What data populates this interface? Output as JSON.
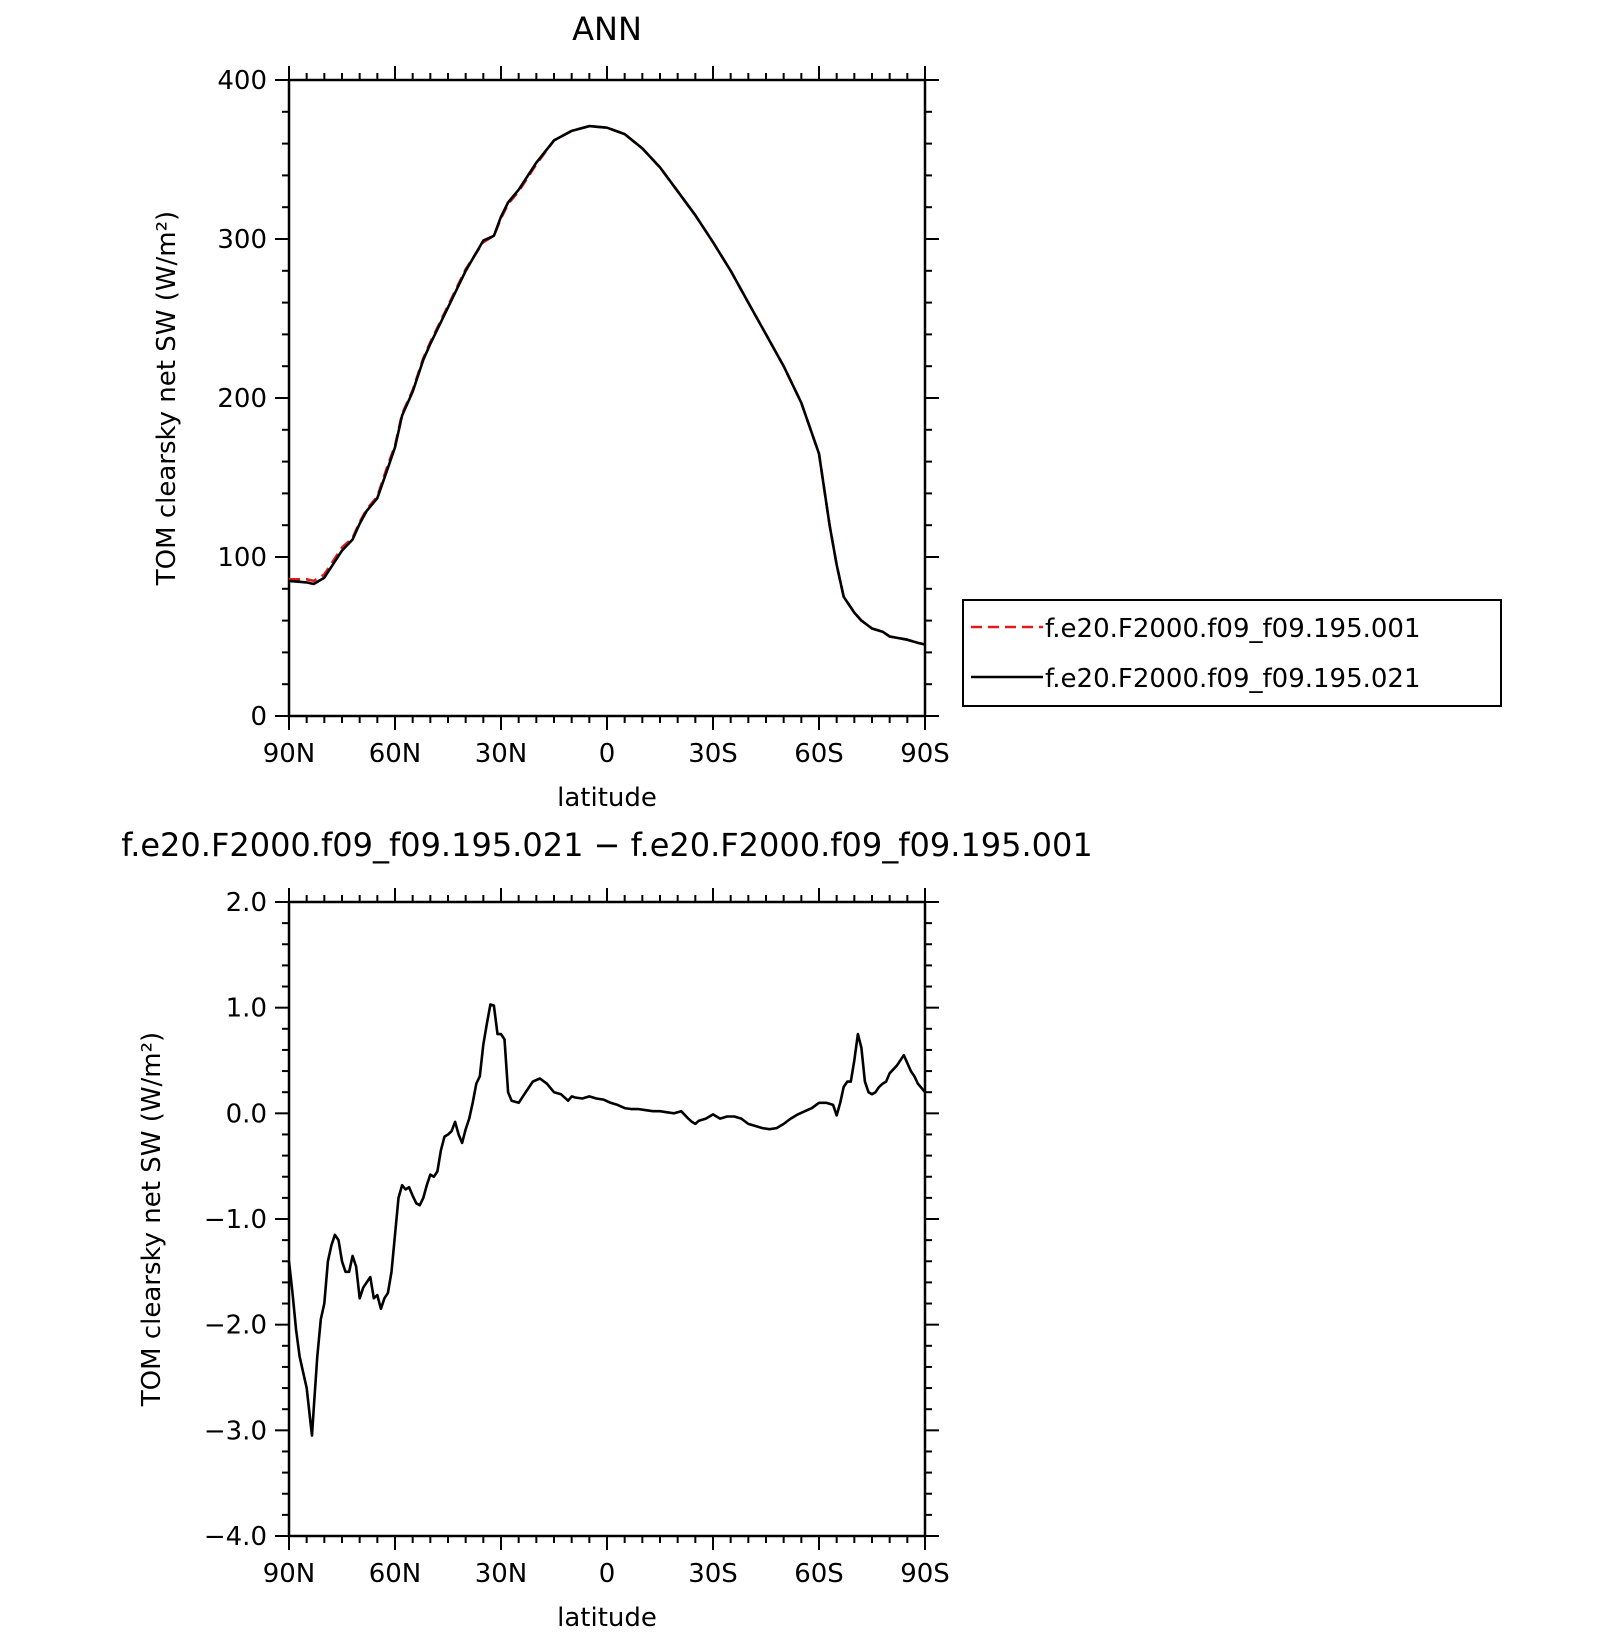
{
  "chart_data": [
    {
      "type": "line",
      "title": "ANN",
      "xlabel": "latitude",
      "ylabel": "TOM clearsky net SW (W/m²)",
      "xlim": [
        90,
        -90
      ],
      "ylim": [
        0,
        400
      ],
      "x_ticks": [
        {
          "value": 90,
          "label": "90N"
        },
        {
          "value": 60,
          "label": "60N"
        },
        {
          "value": 30,
          "label": "30N"
        },
        {
          "value": 0,
          "label": "0"
        },
        {
          "value": -30,
          "label": "30S"
        },
        {
          "value": -60,
          "label": "60S"
        },
        {
          "value": -90,
          "label": "90S"
        }
      ],
      "y_ticks": [
        {
          "value": 0,
          "label": "0"
        },
        {
          "value": 100,
          "label": "100"
        },
        {
          "value": 200,
          "label": "200"
        },
        {
          "value": 300,
          "label": "300"
        },
        {
          "value": 400,
          "label": "400"
        }
      ],
      "legend": "right",
      "series": [
        {
          "name": "f.e20.F2000.f09_f09.195.001",
          "color": "#e31a1c",
          "dash": "dashed",
          "x": [
            90,
            85,
            83,
            80,
            75,
            72,
            70,
            68,
            65,
            62,
            60,
            58,
            55,
            52,
            50,
            45,
            40,
            35,
            32,
            30,
            28,
            25,
            20,
            15,
            10,
            5,
            0,
            -5,
            -10,
            -15,
            -20,
            -25,
            -30,
            -35,
            -40,
            -45,
            -50,
            -55,
            -60,
            -63,
            -65,
            -67,
            -70,
            -72,
            -75,
            -78,
            -80,
            -85,
            -88,
            -90
          ],
          "y": [
            86,
            86,
            85,
            89,
            106,
            112,
            122,
            130,
            138,
            158,
            170,
            190,
            205,
            225,
            235,
            258,
            281,
            298,
            302,
            313,
            322,
            330,
            347,
            362,
            368,
            371,
            370,
            366,
            357,
            345,
            330,
            315,
            298,
            280,
            260,
            240,
            220,
            197,
            165,
            120,
            95,
            75,
            65,
            60,
            55,
            53,
            50,
            48,
            46,
            45
          ]
        },
        {
          "name": "f.e20.F2000.f09_f09.195.021",
          "color": "#000000",
          "dash": "solid",
          "x": [
            90,
            85,
            83,
            80,
            75,
            72,
            70,
            68,
            65,
            62,
            60,
            58,
            55,
            52,
            50,
            45,
            40,
            35,
            32,
            30,
            28,
            25,
            20,
            15,
            10,
            5,
            0,
            -5,
            -10,
            -15,
            -20,
            -25,
            -30,
            -35,
            -40,
            -45,
            -50,
            -55,
            -60,
            -63,
            -65,
            -67,
            -70,
            -72,
            -75,
            -78,
            -80,
            -85,
            -88,
            -90
          ],
          "y": [
            85,
            84,
            83,
            87,
            104,
            111,
            121,
            129,
            137,
            156,
            169,
            189,
            204,
            224,
            234,
            257,
            280,
            299,
            302,
            314,
            323,
            331,
            348,
            362,
            368,
            371,
            370,
            366,
            357,
            345,
            330,
            315,
            298,
            280,
            260,
            240,
            220,
            197,
            165,
            120,
            95,
            75,
            65,
            60,
            55,
            53,
            50,
            48,
            46,
            45
          ]
        }
      ]
    },
    {
      "type": "line",
      "title": "f.e20.F2000.f09_f09.195.021 − f.e20.F2000.f09_f09.195.001",
      "xlabel": "latitude",
      "ylabel": "TOM clearsky net SW (W/m²)",
      "xlim": [
        90,
        -90
      ],
      "ylim": [
        -4.0,
        2.0
      ],
      "x_ticks": [
        {
          "value": 90,
          "label": "90N"
        },
        {
          "value": 60,
          "label": "60N"
        },
        {
          "value": 30,
          "label": "30N"
        },
        {
          "value": 0,
          "label": "0"
        },
        {
          "value": -30,
          "label": "30S"
        },
        {
          "value": -60,
          "label": "60S"
        },
        {
          "value": -90,
          "label": "90S"
        }
      ],
      "y_ticks": [
        {
          "value": -4.0,
          "label": "−4.0"
        },
        {
          "value": -3.0,
          "label": "−3.0"
        },
        {
          "value": -2.0,
          "label": "−2.0"
        },
        {
          "value": -1.0,
          "label": "−1.0"
        },
        {
          "value": 0.0,
          "label": "0.0"
        },
        {
          "value": 1.0,
          "label": "1.0"
        },
        {
          "value": 2.0,
          "label": "2.0"
        }
      ],
      "series": [
        {
          "color": "#000000",
          "x": [
            90,
            89,
            88,
            87,
            86,
            85,
            84,
            83.5,
            83,
            82,
            81,
            80,
            79,
            78,
            77,
            76,
            75,
            74,
            73,
            72,
            71,
            70,
            69,
            68,
            67,
            66,
            65,
            64,
            63,
            62,
            61,
            60,
            59,
            58,
            57,
            56,
            55,
            54,
            53,
            52,
            51,
            50,
            49,
            48,
            47,
            46,
            45,
            44,
            43,
            42,
            41,
            40,
            39,
            38,
            37,
            36,
            35,
            34,
            33,
            32,
            31,
            30,
            29,
            28,
            27,
            25,
            23,
            21,
            19,
            17,
            15,
            13,
            11,
            10,
            9,
            7,
            5,
            3,
            1,
            -1,
            -3,
            -5,
            -7,
            -9,
            -11,
            -13,
            -15,
            -17,
            -19,
            -21,
            -23,
            -24,
            -25,
            -26,
            -28,
            -30,
            -32,
            -34,
            -36,
            -38,
            -40,
            -42,
            -44,
            -46,
            -48,
            -50,
            -52,
            -54,
            -56,
            -58,
            -60,
            -62,
            -64,
            -65,
            -66,
            -67,
            -68,
            -69,
            -70,
            -71,
            -72,
            -73,
            -74,
            -75,
            -76,
            -77,
            -78,
            -79,
            -80,
            -82,
            -84,
            -86,
            -87,
            -88,
            -90
          ],
          "y": [
            -1.4,
            -1.7,
            -2.05,
            -2.3,
            -2.45,
            -2.6,
            -2.9,
            -3.05,
            -2.8,
            -2.3,
            -1.95,
            -1.8,
            -1.4,
            -1.25,
            -1.15,
            -1.2,
            -1.4,
            -1.5,
            -1.5,
            -1.35,
            -1.45,
            -1.75,
            -1.65,
            -1.6,
            -1.55,
            -1.75,
            -1.72,
            -1.85,
            -1.75,
            -1.7,
            -1.5,
            -1.15,
            -0.8,
            -0.68,
            -0.72,
            -0.7,
            -0.78,
            -0.85,
            -0.87,
            -0.8,
            -0.68,
            -0.58,
            -0.6,
            -0.55,
            -0.35,
            -0.22,
            -0.2,
            -0.17,
            -0.08,
            -0.2,
            -0.28,
            -0.15,
            -0.05,
            0.1,
            0.28,
            0.35,
            0.65,
            0.85,
            1.03,
            1.02,
            0.75,
            0.75,
            0.7,
            0.2,
            0.12,
            0.1,
            0.2,
            0.3,
            0.33,
            0.28,
            0.2,
            0.18,
            0.12,
            0.16,
            0.15,
            0.14,
            0.16,
            0.14,
            0.13,
            0.1,
            0.08,
            0.05,
            0.04,
            0.04,
            0.03,
            0.02,
            0.02,
            0.01,
            0.0,
            0.02,
            -0.05,
            -0.08,
            -0.1,
            -0.07,
            -0.05,
            -0.01,
            -0.05,
            -0.03,
            -0.03,
            -0.05,
            -0.1,
            -0.12,
            -0.14,
            -0.15,
            -0.14,
            -0.1,
            -0.05,
            -0.01,
            0.02,
            0.05,
            0.1,
            0.1,
            0.08,
            -0.02,
            0.1,
            0.25,
            0.3,
            0.3,
            0.5,
            0.75,
            0.62,
            0.3,
            0.2,
            0.18,
            0.2,
            0.25,
            0.28,
            0.3,
            0.38,
            0.45,
            0.55,
            0.4,
            0.35,
            0.28,
            0.2
          ]
        }
      ]
    }
  ]
}
